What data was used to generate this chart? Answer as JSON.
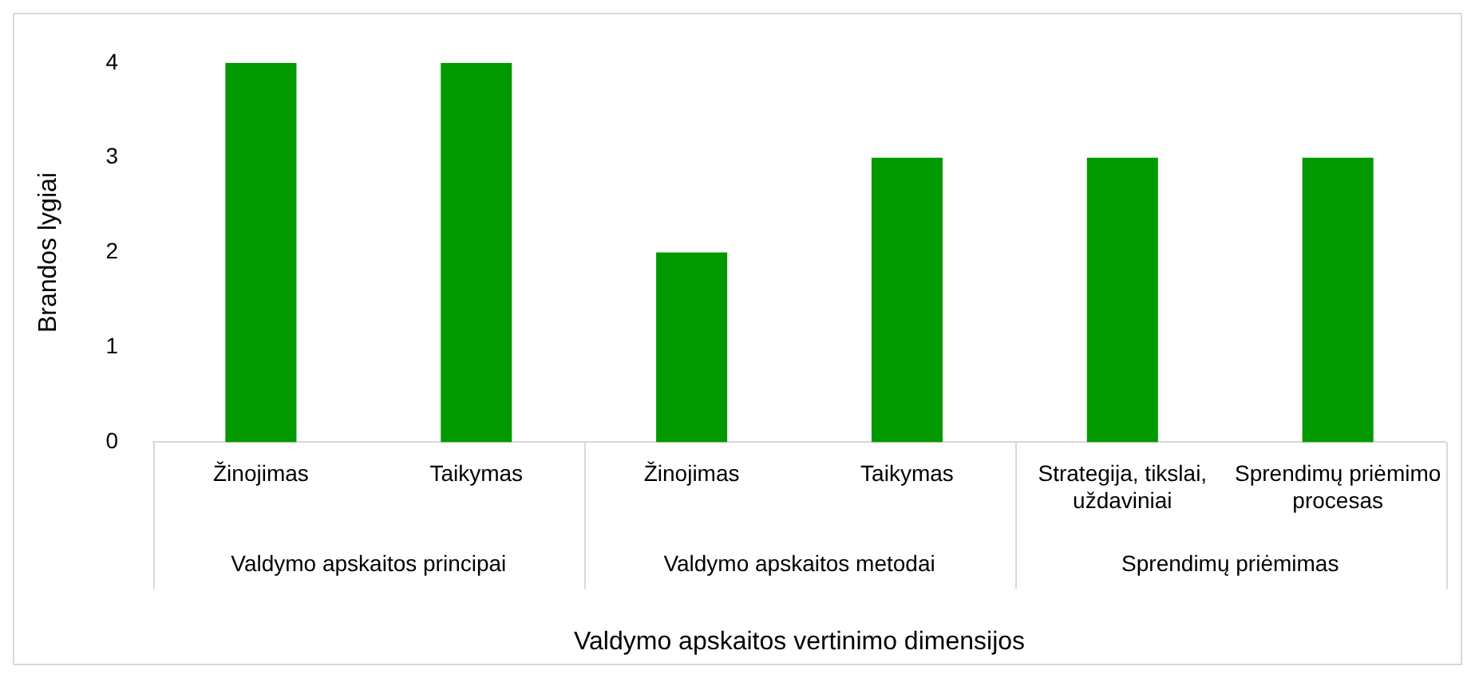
{
  "chart_data": {
    "type": "bar",
    "xlabel": "Valdymo apskaitos vertinimo dimensijos",
    "ylabel": "Brandos lygiai",
    "categories": [
      "Žinojimas",
      "Taikymas",
      "Žinojimas",
      "Taikymas",
      "Strategija, tikslai, uždaviniai",
      "Sprendimų priėmimo procesas"
    ],
    "values": [
      4,
      4,
      2,
      3,
      3,
      3
    ],
    "color": "#009900",
    "ylim": [
      0,
      4
    ],
    "yticks": [
      0,
      1,
      2,
      3,
      4
    ],
    "grid": false,
    "legend": false,
    "annotations": [
      "Valdymo apskaitos principai",
      "Valdymo apskaitos metodai",
      "Sprendimų priėmimas"
    ]
  }
}
